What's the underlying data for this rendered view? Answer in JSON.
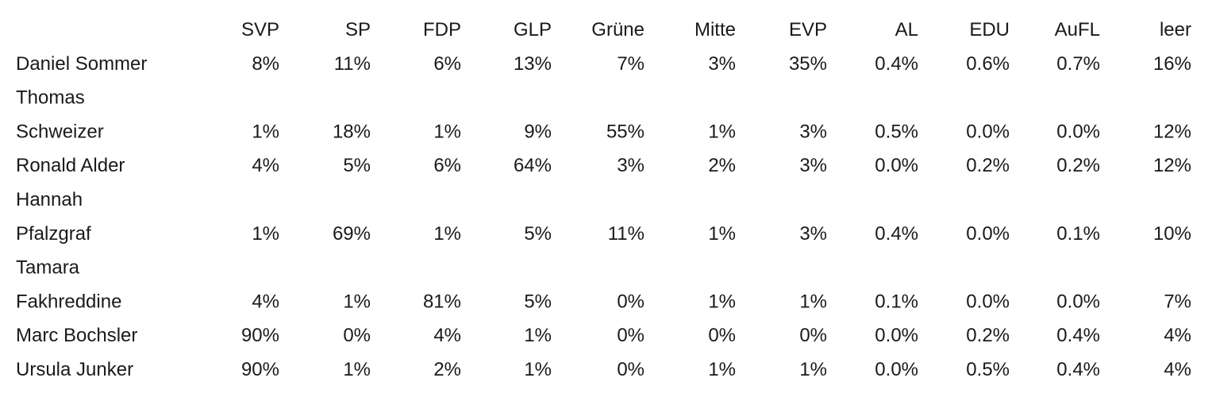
{
  "table": {
    "header": [
      "SVP",
      "SP",
      "FDP",
      "GLP",
      "Grüne",
      "Mitte",
      "EVP",
      "AL",
      "EDU",
      "AuFL",
      "leer"
    ],
    "rows": [
      {
        "name": [
          "Daniel Sommer"
        ],
        "cells": [
          "8%",
          "11%",
          "6%",
          "13%",
          "7%",
          "3%",
          "35%",
          "0.4%",
          "0.6%",
          "0.7%",
          "16%"
        ]
      },
      {
        "name": [
          "Thomas",
          "Schweizer"
        ],
        "cells": [
          "1%",
          "18%",
          "1%",
          "9%",
          "55%",
          "1%",
          "3%",
          "0.5%",
          "0.0%",
          "0.0%",
          "12%"
        ]
      },
      {
        "name": [
          "Ronald Alder"
        ],
        "cells": [
          "4%",
          "5%",
          "6%",
          "64%",
          "3%",
          "2%",
          "3%",
          "0.0%",
          "0.2%",
          "0.2%",
          "12%"
        ]
      },
      {
        "name": [
          "Hannah",
          "Pfalzgraf"
        ],
        "cells": [
          "1%",
          "69%",
          "1%",
          "5%",
          "11%",
          "1%",
          "3%",
          "0.4%",
          "0.0%",
          "0.1%",
          "10%"
        ]
      },
      {
        "name": [
          "Tamara",
          "Fakhreddine"
        ],
        "cells": [
          "4%",
          "1%",
          "81%",
          "5%",
          "0%",
          "1%",
          "1%",
          "0.1%",
          "0.0%",
          "0.0%",
          "7%"
        ]
      },
      {
        "name": [
          "Marc Bochsler"
        ],
        "cells": [
          "90%",
          "0%",
          "4%",
          "1%",
          "0%",
          "0%",
          "0%",
          "0.0%",
          "0.2%",
          "0.4%",
          "4%"
        ]
      },
      {
        "name": [
          "Ursula Junker"
        ],
        "cells": [
          "90%",
          "1%",
          "2%",
          "1%",
          "0%",
          "1%",
          "1%",
          "0.0%",
          "0.5%",
          "0.4%",
          "4%"
        ]
      }
    ]
  }
}
